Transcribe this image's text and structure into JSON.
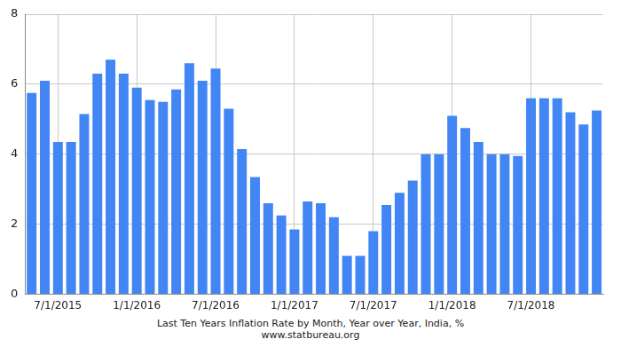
{
  "chart_data": {
    "type": "bar",
    "title": "Last Ten Years Inflation Rate by Month, Year over Year, India, %",
    "subtitle": "www.statbureau.org",
    "categories": [
      null,
      null,
      "7/1/2015",
      null,
      null,
      null,
      null,
      null,
      "1/1/2016",
      null,
      null,
      null,
      null,
      null,
      "7/1/2016",
      null,
      null,
      null,
      null,
      null,
      "1/1/2017",
      null,
      null,
      null,
      null,
      null,
      "7/1/2017",
      null,
      null,
      null,
      null,
      null,
      "1/1/2018",
      null,
      null,
      null,
      null,
      null,
      "7/1/2018",
      null,
      null,
      null,
      null,
      null
    ],
    "values": [
      5.75,
      6.1,
      4.35,
      4.35,
      5.15,
      6.3,
      6.7,
      6.3,
      5.9,
      5.55,
      5.5,
      5.85,
      6.6,
      6.1,
      6.45,
      5.3,
      4.15,
      3.35,
      2.6,
      2.25,
      1.85,
      2.65,
      2.6,
      2.2,
      1.1,
      1.1,
      1.8,
      2.55,
      2.9,
      3.25,
      4.0,
      4.0,
      5.1,
      4.75,
      4.35,
      4.0,
      4.0,
      3.95,
      5.6,
      5.6,
      5.6,
      5.2,
      4.85,
      5.25
    ],
    "color": "#4285f4",
    "ylim": [
      0,
      8
    ],
    "yticks": [
      0,
      2,
      4,
      6,
      8
    ],
    "grid": true
  }
}
